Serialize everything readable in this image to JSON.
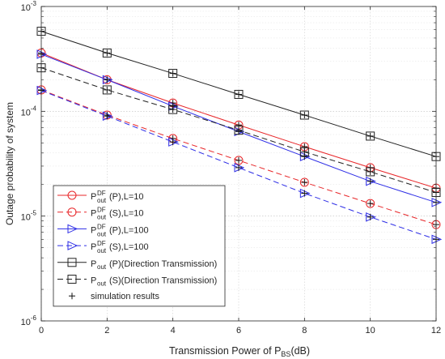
{
  "chart_data": {
    "type": "line",
    "xlabel_main": "Transmission Power of P",
    "xlabel_sub": "BS",
    "xlabel_tail": "(dB)",
    "ylabel": "Outage probability of system",
    "x_ticks": [
      "0",
      "2",
      "4",
      "6",
      "8",
      "10",
      "12"
    ],
    "xlim": [
      0,
      12
    ],
    "y_ticks": [
      {
        "base": "10",
        "exp": "-6"
      },
      {
        "base": "10",
        "exp": "-5"
      },
      {
        "base": "10",
        "exp": "-4"
      },
      {
        "base": "10",
        "exp": "-3"
      }
    ],
    "ylim": [
      1e-06,
      0.001
    ],
    "yscale": "log",
    "grid": true,
    "legend_position": "bottom-left",
    "x": [
      0,
      2,
      4,
      6,
      8,
      10,
      12
    ],
    "series": [
      {
        "legend": {
          "pre": "P",
          "sup": "DF",
          "sub": "out",
          "post": "(P),L=10"
        },
        "color": "#e8272a",
        "dash": "solid",
        "marker": "circle",
        "values": [
          0.00036,
          0.0002,
          0.00012,
          7.4e-05,
          4.6e-05,
          2.9e-05,
          1.85e-05
        ]
      },
      {
        "legend": {
          "pre": "P",
          "sup": "DF",
          "sub": "out",
          "post": "(S),L=10"
        },
        "color": "#e8272a",
        "dash": "dashed",
        "marker": "circle",
        "values": [
          0.00016,
          9.2e-05,
          5.5e-05,
          3.4e-05,
          2.1e-05,
          1.32e-05,
          8.3e-06
        ]
      },
      {
        "legend": {
          "pre": "P",
          "sup": "DF",
          "sub": "out",
          "post": "(P),L=100"
        },
        "color": "#2e2ee6",
        "dash": "solid",
        "marker": "triangle-right",
        "values": [
          0.00035,
          0.0002,
          0.000112,
          6.4e-05,
          3.7e-05,
          2.15e-05,
          1.35e-05
        ]
      },
      {
        "legend": {
          "pre": "P",
          "sup": "DF",
          "sub": "out",
          "post": "(S),L=100"
        },
        "color": "#2e2ee6",
        "dash": "dashed",
        "marker": "triangle-right",
        "values": [
          0.000158,
          9e-05,
          5.1e-05,
          2.9e-05,
          1.65e-05,
          9.8e-06,
          6e-06
        ]
      },
      {
        "legend": {
          "pre": "P",
          "sup": "",
          "sub": "out",
          "post": "(P)(Direction Transmission)"
        },
        "color": "#222222",
        "dash": "solid",
        "marker": "square",
        "values": [
          0.00058,
          0.00036,
          0.00023,
          0.000145,
          9.2e-05,
          5.8e-05,
          3.7e-05
        ]
      },
      {
        "legend": {
          "pre": "P",
          "sup": "",
          "sub": "out",
          "post": "(S)(Direction Transmission)"
        },
        "color": "#222222",
        "dash": "dashed",
        "marker": "square",
        "values": [
          0.00026,
          0.00016,
          0.000104,
          6.6e-05,
          4.1e-05,
          2.65e-05,
          1.68e-05
        ]
      }
    ],
    "simulation_legend": "simulation results"
  }
}
